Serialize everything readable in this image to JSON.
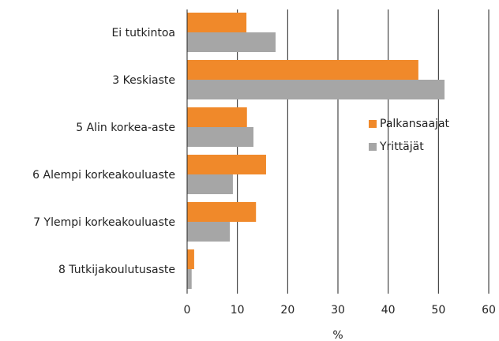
{
  "chart_data": {
    "type": "hbar",
    "categories": [
      "Ei tutkintoa",
      "3 Keskiaste",
      "5 Alin korkea-aste",
      "6 Alempi korkeakouluaste",
      "7 Ylempi korkeakouluaste",
      "8 Tutkijakoulutusaste"
    ],
    "series": [
      {
        "name": "Palkansaajat",
        "color": "#f0892a",
        "values": [
          11.8,
          46,
          11.9,
          15.7,
          13.7,
          1.4
        ]
      },
      {
        "name": "Yrittäjät",
        "color": "#a6a6a6",
        "values": [
          17.6,
          51.2,
          13.2,
          9.1,
          8.5,
          0.9
        ]
      }
    ],
    "xlabel": "%",
    "xlim": [
      0,
      60
    ],
    "xticks": [
      0,
      10,
      20,
      30,
      40,
      50,
      60
    ],
    "grid": true,
    "legend": "right"
  }
}
